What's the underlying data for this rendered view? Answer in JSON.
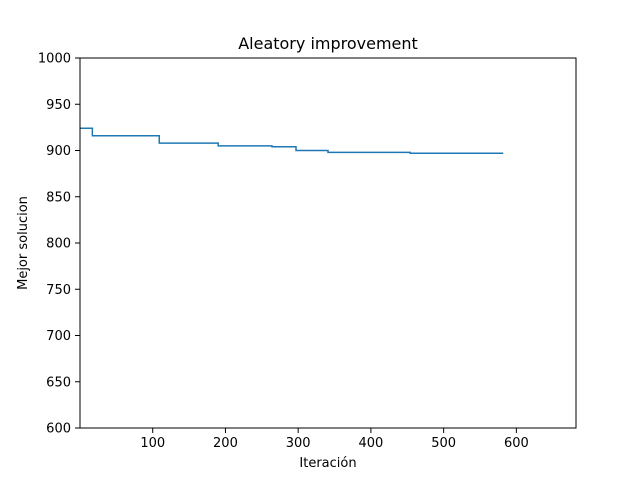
{
  "chart_data": {
    "type": "line",
    "title": "Aleatory improvement",
    "xlabel": "Iteración",
    "ylabel": "Mejor solucion",
    "xlim": [
      0,
      682
    ],
    "ylim": [
      600,
      1000
    ],
    "xticks": [
      100,
      200,
      300,
      400,
      500,
      600
    ],
    "yticks": [
      600,
      650,
      700,
      750,
      800,
      850,
      900,
      950,
      1000
    ],
    "grid": false,
    "series": [
      {
        "color": "#1f77b4",
        "step": "post",
        "x": [
          0,
          17,
          109,
          190,
          264,
          297,
          341,
          454,
          582
        ],
        "y": [
          924,
          916,
          908,
          905,
          904,
          900,
          898,
          897,
          897
        ]
      }
    ]
  }
}
